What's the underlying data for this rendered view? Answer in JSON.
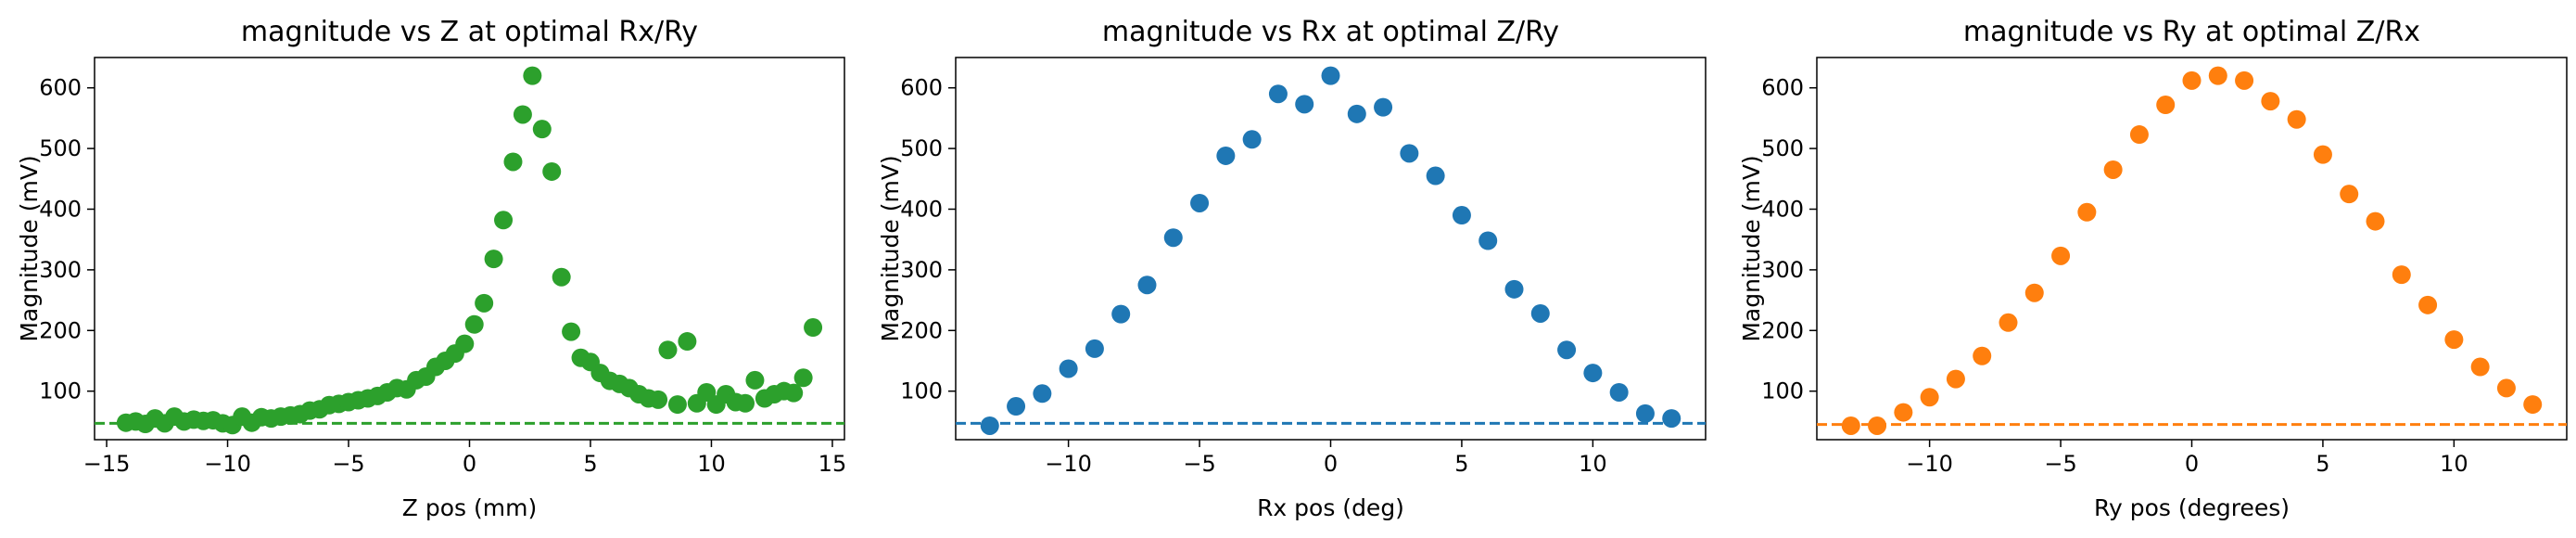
{
  "chart_data": [
    {
      "type": "scatter",
      "title": "magnitude vs Z at optimal Rx/Ry",
      "xlabel": "Z pos (mm)",
      "ylabel": "Magnitude (mV)",
      "xlim": [
        -15.5,
        15.5
      ],
      "ylim": [
        20,
        650
      ],
      "xticks": [
        -15,
        -10,
        -5,
        0,
        5,
        10,
        15
      ],
      "yticks": [
        100,
        200,
        300,
        400,
        500,
        600
      ],
      "color": "#2ca02c",
      "baseline": 47,
      "x": [
        -14.2,
        -13.8,
        -13.4,
        -13.0,
        -12.6,
        -12.2,
        -11.8,
        -11.4,
        -11.0,
        -10.6,
        -10.2,
        -9.8,
        -9.4,
        -9.0,
        -8.6,
        -8.2,
        -7.8,
        -7.4,
        -7.0,
        -6.6,
        -6.2,
        -5.8,
        -5.4,
        -5.0,
        -4.6,
        -4.2,
        -3.8,
        -3.4,
        -3.0,
        -2.6,
        -2.2,
        -1.8,
        -1.4,
        -1.0,
        -0.6,
        -0.2,
        0.2,
        0.6,
        1.0,
        1.4,
        1.8,
        2.2,
        2.6,
        3.0,
        3.4,
        3.8,
        4.2,
        4.6,
        5.0,
        5.4,
        5.8,
        6.2,
        6.6,
        7.0,
        7.4,
        7.8,
        8.2,
        8.6,
        9.0,
        9.4,
        9.8,
        10.2,
        10.6,
        11.0,
        11.4,
        11.8,
        12.2,
        12.6,
        13.0,
        13.4,
        13.8,
        14.2
      ],
      "y": [
        48,
        50,
        46,
        55,
        47,
        58,
        50,
        53,
        51,
        52,
        47,
        44,
        58,
        48,
        57,
        55,
        58,
        60,
        62,
        68,
        70,
        77,
        79,
        82,
        85,
        88,
        92,
        98,
        105,
        103,
        118,
        124,
        140,
        150,
        162,
        178,
        210,
        245,
        318,
        382,
        478,
        556,
        620,
        532,
        462,
        288,
        198,
        155,
        148,
        130,
        117,
        112,
        105,
        95,
        88,
        86,
        168,
        78,
        182,
        80,
        98,
        78,
        95,
        82,
        80,
        118,
        88,
        95,
        100,
        97,
        122,
        205
      ]
    },
    {
      "type": "scatter",
      "title": "magnitude vs Rx at optimal Z/Ry",
      "xlabel": "Rx pos (deg)",
      "ylabel": "Magnitude (mV)",
      "xlim": [
        -14.3,
        14.3
      ],
      "ylim": [
        20,
        650
      ],
      "xticks": [
        -10,
        -5,
        0,
        5,
        10
      ],
      "yticks": [
        100,
        200,
        300,
        400,
        500,
        600
      ],
      "color": "#1f77b4",
      "baseline": 47,
      "x": [
        -13,
        -12,
        -11,
        -10,
        -9,
        -8,
        -7,
        -6,
        -5,
        -4,
        -3,
        -2,
        -1,
        0,
        1,
        2,
        3,
        4,
        5,
        6,
        7,
        8,
        9,
        10,
        11,
        12,
        13
      ],
      "y": [
        43,
        75,
        96,
        137,
        170,
        227,
        275,
        353,
        410,
        488,
        515,
        590,
        573,
        620,
        557,
        568,
        492,
        455,
        390,
        348,
        268,
        228,
        168,
        130,
        98,
        63,
        55
      ]
    },
    {
      "type": "scatter",
      "title": "magnitude vs Ry at optimal Z/Rx",
      "xlabel": "Ry pos (degrees)",
      "ylabel": "Magnitude (mV)",
      "xlim": [
        -14.3,
        14.3
      ],
      "ylim": [
        20,
        650
      ],
      "xticks": [
        -10,
        -5,
        0,
        5,
        10
      ],
      "yticks": [
        100,
        200,
        300,
        400,
        500,
        600
      ],
      "color": "#ff7f0e",
      "baseline": 45,
      "x": [
        -13,
        -12,
        -11,
        -10,
        -9,
        -8,
        -7,
        -6,
        -5,
        -4,
        -3,
        -2,
        -1,
        0,
        1,
        2,
        3,
        4,
        5,
        6,
        7,
        8,
        9,
        10,
        11,
        12,
        13
      ],
      "y": [
        43,
        43,
        65,
        90,
        120,
        158,
        213,
        262,
        323,
        395,
        465,
        523,
        572,
        612,
        620,
        612,
        578,
        548,
        490,
        425,
        380,
        292,
        242,
        185,
        140,
        105,
        78
      ]
    }
  ]
}
